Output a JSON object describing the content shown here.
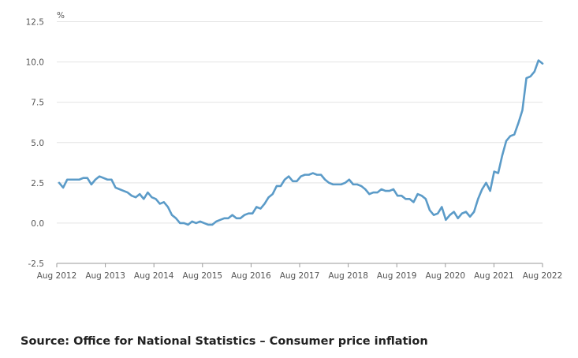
{
  "source": "Source: Office for National Statistics – Consumer price inflation",
  "chart_data": {
    "type": "line",
    "title": "",
    "xlabel": "",
    "ylabel": "",
    "y_unit": "%",
    "ylim": [
      -2.5,
      12.5
    ],
    "y_ticks": [
      -2.5,
      0.0,
      2.5,
      5.0,
      7.5,
      10.0,
      12.5
    ],
    "y_tick_labels": [
      "-2.5",
      "0.0",
      "2.5",
      "5.0",
      "7.5",
      "10.0",
      "12.5"
    ],
    "x_tick_labels": [
      "Aug 2012",
      "Aug 2013",
      "Aug 2014",
      "Aug 2015",
      "Aug 2016",
      "Aug 2017",
      "Aug 2018",
      "Aug 2019",
      "Aug 2020",
      "Aug 2021",
      "Aug 2022"
    ],
    "x_start": "Aug 2012",
    "x_end": "Aug 2022",
    "grid": "horizontal",
    "legend": "none",
    "line_color": "#5b9bc8",
    "series": [
      {
        "values": [
          2.5,
          2.2,
          2.7,
          2.7,
          2.7,
          2.7,
          2.8,
          2.8,
          2.4,
          2.7,
          2.9,
          2.8,
          2.7,
          2.7,
          2.2,
          2.1,
          2.0,
          1.9,
          1.7,
          1.6,
          1.8,
          1.5,
          1.9,
          1.6,
          1.5,
          1.2,
          1.3,
          1.0,
          0.5,
          0.3,
          0.0,
          0.0,
          -0.1,
          0.1,
          0.0,
          0.1,
          0.0,
          -0.1,
          -0.1,
          0.1,
          0.2,
          0.3,
          0.3,
          0.5,
          0.3,
          0.3,
          0.5,
          0.6,
          0.6,
          1.0,
          0.9,
          1.2,
          1.6,
          1.8,
          2.3,
          2.3,
          2.7,
          2.9,
          2.6,
          2.6,
          2.9,
          3.0,
          3.0,
          3.1,
          3.0,
          3.0,
          2.7,
          2.5,
          2.4,
          2.4,
          2.4,
          2.5,
          2.7,
          2.4,
          2.4,
          2.3,
          2.1,
          1.8,
          1.9,
          1.9,
          2.1,
          2.0,
          2.0,
          2.1,
          1.7,
          1.7,
          1.5,
          1.5,
          1.3,
          1.8,
          1.7,
          1.5,
          0.8,
          0.5,
          0.6,
          1.0,
          0.2,
          0.5,
          0.7,
          0.3,
          0.6,
          0.7,
          0.4,
          0.7,
          1.5,
          2.1,
          2.5,
          2.0,
          3.2,
          3.1,
          4.2,
          5.1,
          5.4,
          5.5,
          6.2,
          7.0,
          9.0,
          9.1,
          9.4,
          10.1,
          9.9
        ]
      }
    ]
  }
}
